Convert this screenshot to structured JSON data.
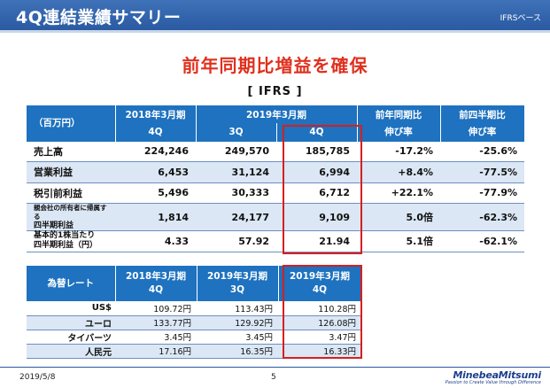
{
  "header": {
    "title": "4Q連結業績サマリー",
    "basis": "IFRSベース"
  },
  "headline": "前年同期比増益を確保",
  "basis_label": "[ IFRS ]",
  "results": {
    "unit": "（百万円）",
    "col_fy2018": "2018年3月期",
    "col_fy2019": "2019年3月期",
    "col_yoy_1": "前年同期比",
    "col_yoy_2": "伸び率",
    "col_qoq_1": "前四半期比",
    "col_qoq_2": "伸び率",
    "sub_4q_2018": "4Q",
    "sub_3q_2019": "3Q",
    "sub_4q_2019": "4Q",
    "rows": [
      {
        "label": "売上高",
        "v2018_4q": "224,246",
        "v2019_3q": "249,570",
        "v2019_4q": "185,785",
        "yoy": "-17.2%",
        "qoq": "-25.6%"
      },
      {
        "label": "営業利益",
        "v2018_4q": "6,453",
        "v2019_3q": "31,124",
        "v2019_4q": "6,994",
        "yoy": "+8.4%",
        "qoq": "-77.5%"
      },
      {
        "label": "税引前利益",
        "v2018_4q": "5,496",
        "v2019_3q": "30,333",
        "v2019_4q": "6,712",
        "yoy": "+22.1%",
        "qoq": "-77.9%"
      },
      {
        "label": "親会社の所有者に帰属する",
        "label2": "四半期利益",
        "v2018_4q": "1,814",
        "v2019_3q": "24,177",
        "v2019_4q": "9,109",
        "yoy": "5.0倍",
        "qoq": "-62.3%"
      },
      {
        "label": "基本的1株当たり",
        "label2": "四半期利益（円）",
        "v2018_4q": "4.33",
        "v2019_3q": "57.92",
        "v2019_4q": "21.94",
        "yoy": "5.1倍",
        "qoq": "-62.1%"
      }
    ]
  },
  "fx": {
    "header_label": "為替レート",
    "col1_1": "2018年3月期",
    "col1_2": "4Q",
    "col2_1": "2019年3月期",
    "col2_2": "3Q",
    "col3_1": "2019年3月期",
    "col3_2": "4Q",
    "rows": [
      {
        "label": "US$",
        "a": "109.72円",
        "b": "113.43円",
        "c": "110.28円"
      },
      {
        "label": "ユーロ",
        "a": "133.77円",
        "b": "129.92円",
        "c": "126.08円"
      },
      {
        "label": "タイバーツ",
        "a": "3.45円",
        "b": "3.45円",
        "c": "3.47円"
      },
      {
        "label": "人民元",
        "a": "17.16円",
        "b": "16.35円",
        "c": "16.33円"
      }
    ]
  },
  "footer": {
    "date": "2019/5/8",
    "page": "5",
    "logo": "MinebeaMitsumi",
    "tagline": "Passion to Create Value through Difference"
  },
  "colors": {
    "accent_blue": "#1e72bf",
    "highlight_red": "#d61f1f",
    "headline_red": "#e0301e",
    "row_shade": "#dbe7f4"
  }
}
